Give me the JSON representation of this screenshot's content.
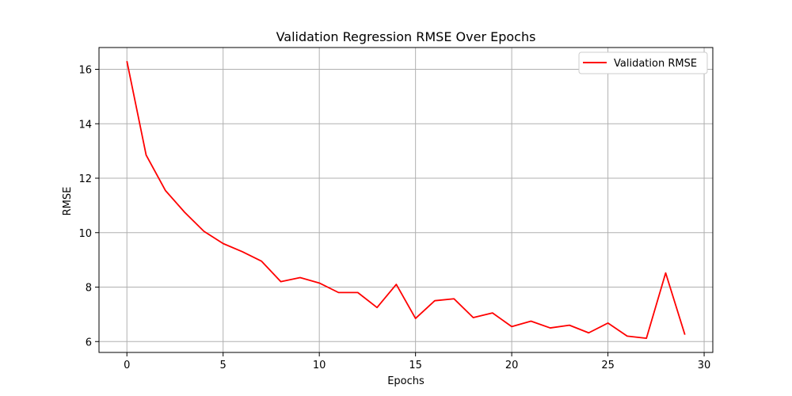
{
  "chart_data": {
    "type": "line",
    "title": "Validation Regression RMSE Over Epochs",
    "xlabel": "Epochs",
    "ylabel": "RMSE",
    "xlim": [
      -1.45,
      30.45
    ],
    "ylim": [
      5.6,
      16.8
    ],
    "xticks": [
      0,
      5,
      10,
      15,
      20,
      25,
      30
    ],
    "yticks": [
      6,
      8,
      10,
      12,
      14,
      16
    ],
    "grid": true,
    "legend_position": "top-right",
    "series": [
      {
        "name": "Validation RMSE",
        "color": "#ff0000",
        "x": [
          0,
          1,
          2,
          3,
          4,
          5,
          6,
          7,
          8,
          9,
          10,
          11,
          12,
          13,
          14,
          15,
          16,
          17,
          18,
          19,
          20,
          21,
          22,
          23,
          24,
          25,
          26,
          27,
          28,
          29
        ],
        "y": [
          16.3,
          12.85,
          11.55,
          10.75,
          10.05,
          9.6,
          9.3,
          8.95,
          8.2,
          8.35,
          8.15,
          7.8,
          7.8,
          7.25,
          8.1,
          6.85,
          7.5,
          7.57,
          6.88,
          7.05,
          6.55,
          6.75,
          6.5,
          6.6,
          6.32,
          6.68,
          6.2,
          6.12,
          8.52,
          6.25
        ]
      }
    ]
  }
}
